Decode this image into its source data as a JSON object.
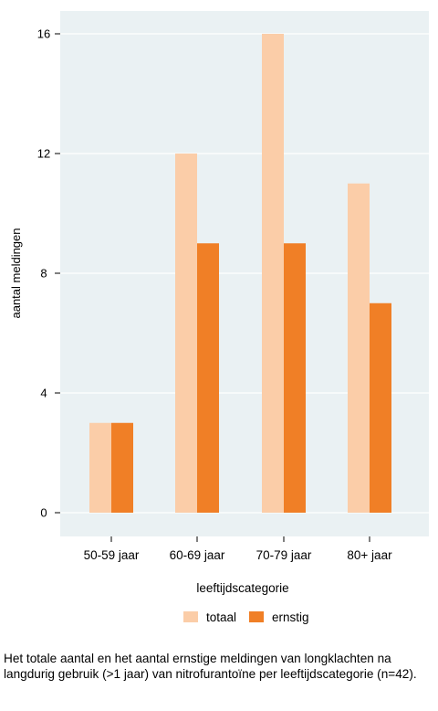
{
  "chart_data": {
    "type": "bar",
    "categories": [
      "50-59 jaar",
      "60-69 jaar",
      "70-79 jaar",
      "80+ jaar"
    ],
    "series": [
      {
        "name": "totaal",
        "values": [
          3,
          12,
          16,
          11
        ],
        "color": "#FBCDA8"
      },
      {
        "name": "ernstig",
        "values": [
          3,
          9,
          9,
          7
        ],
        "color": "#F07F26"
      }
    ],
    "xlabel": "leeftijdscategorie",
    "ylabel": "aantal meldingen",
    "yticks": [
      0,
      4,
      8,
      12,
      16
    ],
    "ylim": [
      0,
      16
    ],
    "grid": true,
    "legend_position": "bottom-center",
    "plot_background": "#EAF1F3"
  },
  "caption": "Het totale aantal en het aantal ernstige meldingen van longklachten na langdurig gebruik (>1 jaar) van nitrofurantoïne per leeftijdscategorie (n=42)."
}
